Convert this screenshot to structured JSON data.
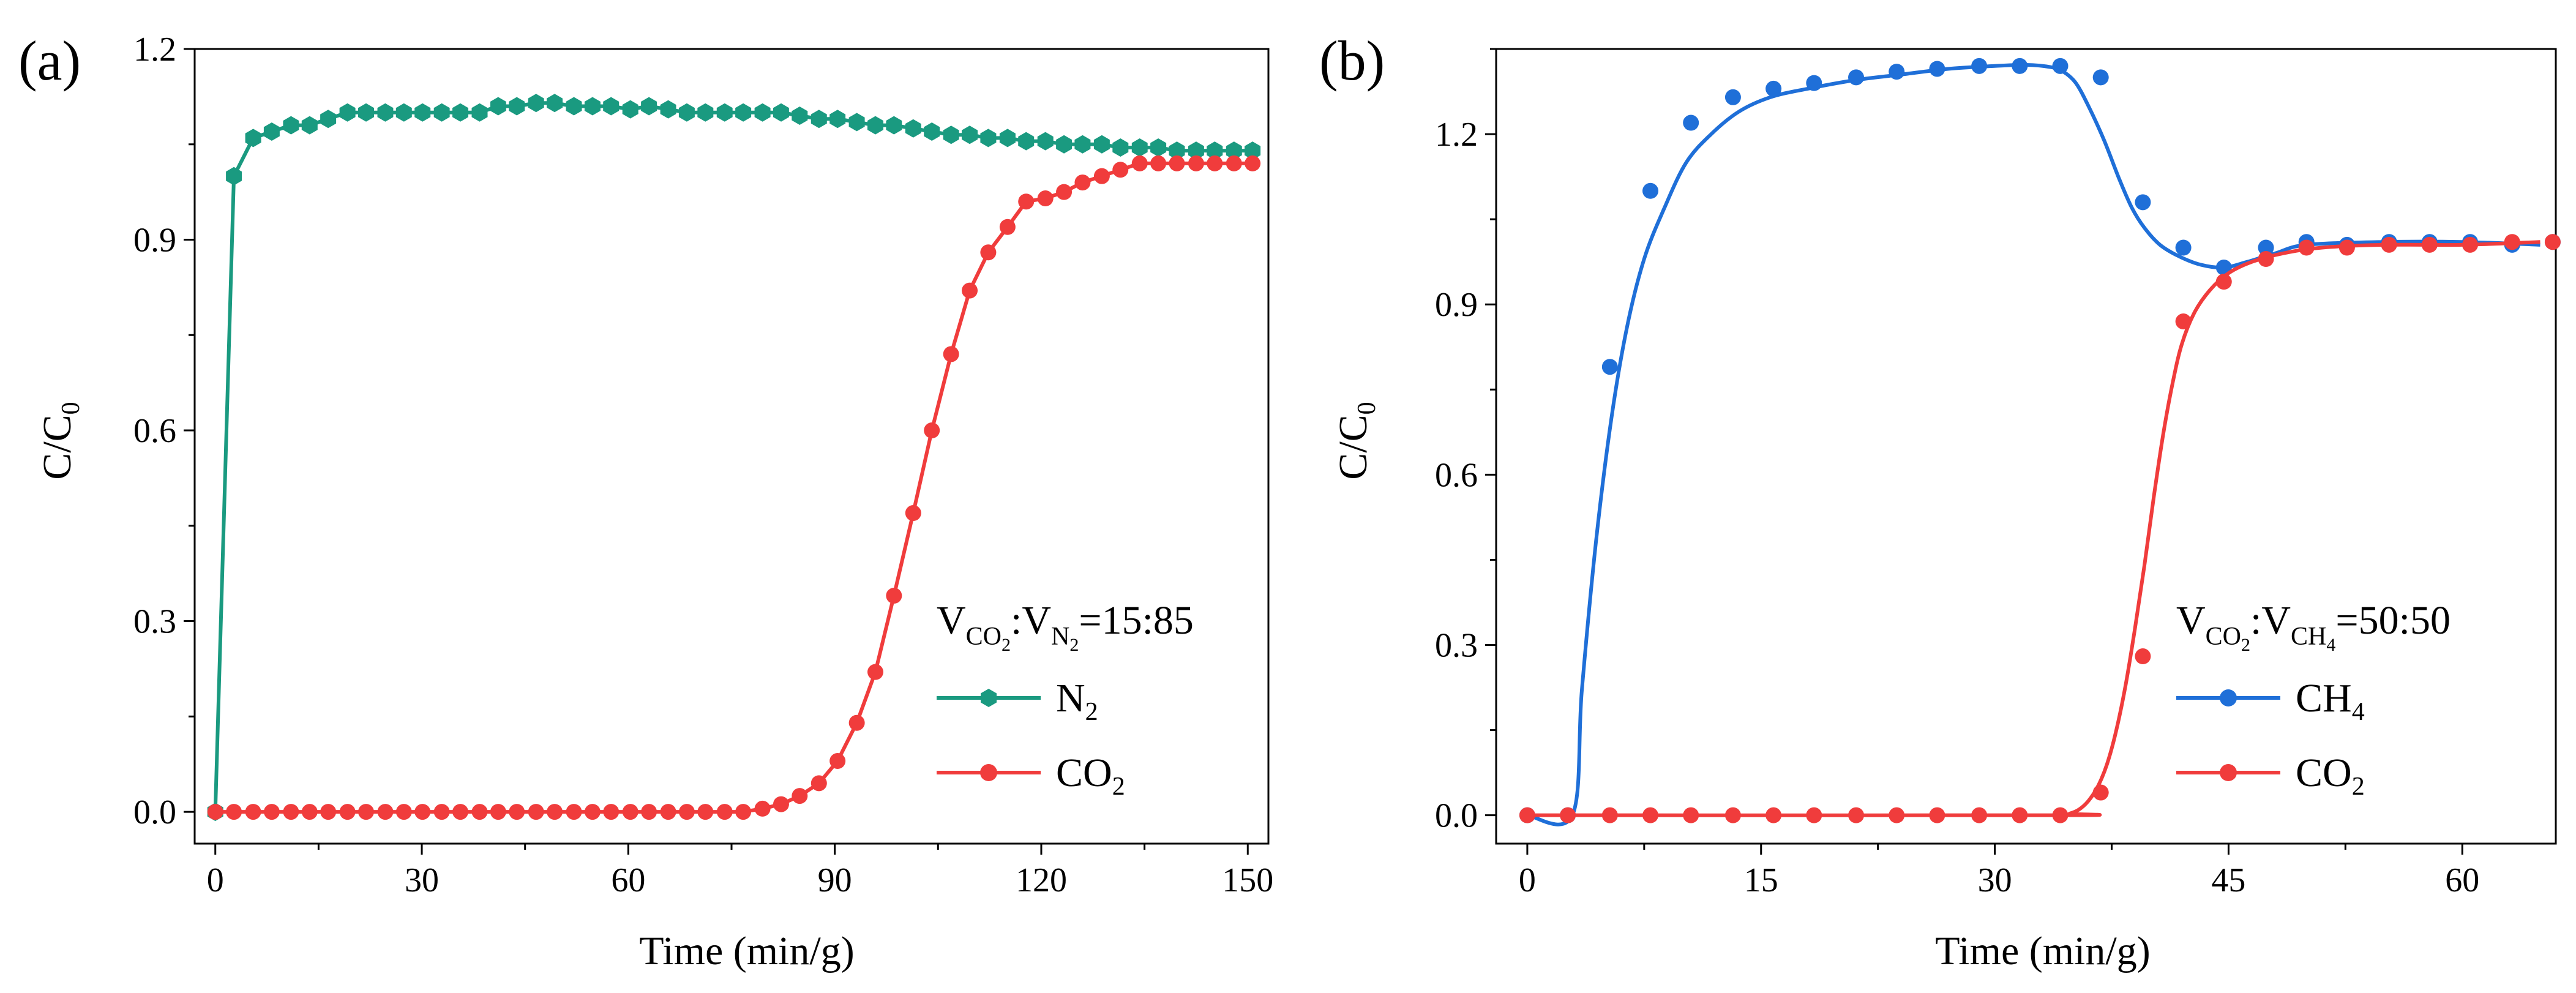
{
  "chart_data": [
    {
      "type": "line",
      "panel_label": "(a)",
      "xlabel": "Time (min/g)",
      "ylabel": "C/C",
      "ylabel_sub": "0",
      "xlim": [
        -3,
        153
      ],
      "ylim": [
        -0.05,
        1.2
      ],
      "xticks": [
        0,
        30,
        60,
        90,
        120,
        150
      ],
      "yticks": [
        0.0,
        0.3,
        0.6,
        0.9,
        1.2
      ],
      "ytick_labels": [
        "0.0",
        "0.3",
        "0.6",
        "0.9",
        "1.2"
      ],
      "grid": false,
      "legend_position": "bottom-right",
      "annotation": {
        "p1": "V",
        "s1": "CO",
        "s1b": "2",
        "p2": ":V",
        "s2": "N",
        "s2b": "2",
        "p3": "=15:85"
      },
      "series": [
        {
          "name": "N",
          "name_sub": "2",
          "color": "#1a9a80",
          "marker": "hexagon",
          "x": [
            0,
            2.7,
            5.5,
            8.2,
            11,
            13.7,
            16.4,
            19.2,
            21.9,
            24.7,
            27.4,
            30.1,
            32.9,
            35.6,
            38.4,
            41.1,
            43.8,
            46.6,
            49.3,
            52.1,
            54.8,
            57.5,
            60.3,
            63,
            65.8,
            68.5,
            71.2,
            74,
            76.7,
            79.5,
            82.2,
            84.9,
            87.7,
            90.4,
            93.2,
            95.9,
            98.6,
            101.4,
            104.1,
            106.9,
            109.6,
            112.3,
            115.1,
            117.8,
            120.6,
            123.3,
            126,
            128.8,
            131.5,
            134.3,
            137,
            139.7,
            142.5,
            145.2,
            148,
            150.7
          ],
          "y": [
            0,
            1.0,
            1.06,
            1.07,
            1.08,
            1.08,
            1.09,
            1.1,
            1.1,
            1.1,
            1.1,
            1.1,
            1.1,
            1.1,
            1.1,
            1.11,
            1.11,
            1.115,
            1.115,
            1.11,
            1.11,
            1.11,
            1.105,
            1.11,
            1.105,
            1.1,
            1.1,
            1.1,
            1.1,
            1.1,
            1.1,
            1.095,
            1.09,
            1.09,
            1.085,
            1.08,
            1.08,
            1.075,
            1.07,
            1.065,
            1.065,
            1.06,
            1.06,
            1.055,
            1.055,
            1.05,
            1.05,
            1.05,
            1.045,
            1.045,
            1.045,
            1.04,
            1.04,
            1.04,
            1.04,
            1.04
          ]
        },
        {
          "name": "CO",
          "name_sub": "2",
          "color": "#f03c3c",
          "marker": "circle",
          "x": [
            0,
            2.7,
            5.5,
            8.2,
            11,
            13.7,
            16.4,
            19.2,
            21.9,
            24.7,
            27.4,
            30.1,
            32.9,
            35.6,
            38.4,
            41.1,
            43.8,
            46.6,
            49.3,
            52.1,
            54.8,
            57.5,
            60.3,
            63,
            65.8,
            68.5,
            71.2,
            74,
            76.7,
            79.5,
            82.2,
            84.9,
            87.7,
            90.4,
            93.2,
            95.9,
            98.6,
            101.4,
            104.1,
            106.9,
            109.6,
            112.3,
            115.1,
            117.8,
            120.6,
            123.3,
            126,
            128.8,
            131.5,
            134.3,
            137,
            139.7,
            142.5,
            145.2,
            148,
            150.7
          ],
          "y": [
            0,
            0,
            0,
            0,
            0,
            0,
            0,
            0,
            0,
            0,
            0,
            0,
            0,
            0,
            0,
            0,
            0,
            0,
            0,
            0,
            0,
            0,
            0,
            0,
            0,
            0,
            0,
            0,
            0,
            0.005,
            0.012,
            0.025,
            0.045,
            0.08,
            0.14,
            0.22,
            0.34,
            0.47,
            0.6,
            0.72,
            0.82,
            0.88,
            0.92,
            0.96,
            0.965,
            0.975,
            0.99,
            1.0,
            1.01,
            1.02,
            1.02,
            1.02,
            1.02,
            1.02,
            1.02,
            1.02
          ]
        }
      ]
    },
    {
      "type": "line",
      "panel_label": "(b)",
      "xlabel": "Time (min/g)",
      "ylabel": "C/C",
      "ylabel_sub": "0",
      "xlim": [
        -2,
        66
      ],
      "ylim": [
        -0.05,
        1.35
      ],
      "xticks": [
        0,
        15,
        30,
        45,
        60
      ],
      "yticks": [
        0.0,
        0.3,
        0.6,
        0.9,
        1.2
      ],
      "ytick_labels": [
        "0.0",
        "0.3",
        "0.6",
        "0.9",
        "1.2"
      ],
      "grid": false,
      "legend_position": "bottom-right",
      "annotation": {
        "p1": "V",
        "s1": "CO",
        "s1b": "2",
        "p2": ":V",
        "s2": "CH",
        "s2b": "4",
        "p3": "=50:50"
      },
      "series": [
        {
          "name": "CH",
          "name_sub": "4",
          "color": "#1f6fd8",
          "marker": "circle",
          "x": [
            0,
            2.6,
            5.3,
            7.9,
            10.5,
            13.2,
            15.8,
            18.4,
            21.1,
            23.7,
            26.3,
            29,
            31.6,
            34.2,
            36.8,
            39.5,
            42.1,
            44.7,
            47.4,
            50,
            52.6,
            55.3,
            57.9,
            60.5,
            63.2,
            65.8
          ],
          "y": [
            0,
            0,
            0.79,
            1.1,
            1.22,
            1.265,
            1.28,
            1.29,
            1.3,
            1.31,
            1.315,
            1.32,
            1.32,
            1.32,
            1.3,
            1.08,
            1.0,
            0.965,
            1.0,
            1.01,
            1.005,
            1.01,
            1.01,
            1.01,
            1.005,
            1.01
          ],
          "curve_x": [
            0,
            2.9,
            3.5,
            4.4,
            5.4,
            6.4,
            7.5,
            8.8,
            10.2,
            11.8,
            13.6,
            15.6,
            18,
            21,
            24,
            27,
            30,
            32,
            33.6,
            34.4,
            35.2,
            36,
            37,
            38,
            38.8,
            39.6,
            40.6,
            41.8,
            43.2,
            44.7,
            46.2,
            48,
            50,
            55,
            60,
            65
          ],
          "curve_y": [
            0,
            0,
            0.22,
            0.48,
            0.7,
            0.86,
            0.98,
            1.07,
            1.15,
            1.2,
            1.24,
            1.265,
            1.28,
            1.295,
            1.305,
            1.315,
            1.32,
            1.322,
            1.318,
            1.31,
            1.29,
            1.25,
            1.19,
            1.12,
            1.07,
            1.035,
            1.005,
            0.985,
            0.97,
            0.965,
            0.975,
            0.99,
            1.005,
            1.01,
            1.01,
            1.005
          ]
        },
        {
          "name": "CO",
          "name_sub": "2",
          "color": "#f03c3c",
          "marker": "circle",
          "x": [
            0,
            2.6,
            5.3,
            7.9,
            10.5,
            13.2,
            15.8,
            18.4,
            21.1,
            23.7,
            26.3,
            29,
            31.6,
            34.2,
            36.8,
            39.5,
            42.1,
            44.7,
            47.4,
            50,
            52.6,
            55.3,
            57.9,
            60.5,
            63.2,
            65.8
          ],
          "y": [
            0,
            0,
            0,
            0,
            0,
            0,
            0,
            0,
            0,
            0,
            0,
            0,
            0,
            0,
            0.04,
            0.28,
            0.87,
            0.94,
            0.98,
            1.0,
            1.0,
            1.005,
            1.005,
            1.005,
            1.01,
            1.01
          ],
          "curve_x": [
            0,
            34,
            34.8,
            35.4,
            36,
            36.6,
            37.2,
            37.8,
            38.4,
            39,
            39.6,
            40.2,
            40.8,
            41.4,
            42,
            42.8,
            43.8,
            45,
            46.5,
            48.5,
            51,
            55,
            60,
            65
          ],
          "curve_y": [
            0,
            0,
            0.003,
            0.01,
            0.025,
            0.05,
            0.09,
            0.15,
            0.23,
            0.33,
            0.44,
            0.56,
            0.67,
            0.76,
            0.83,
            0.885,
            0.925,
            0.955,
            0.975,
            0.99,
            1.0,
            1.005,
            1.005,
            1.01
          ]
        }
      ]
    }
  ]
}
